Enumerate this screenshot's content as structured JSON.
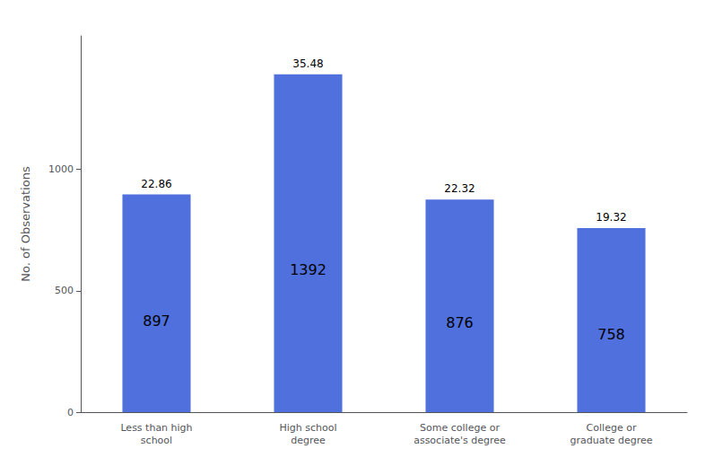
{
  "chart_data": {
    "type": "bar",
    "categories": [
      "Less than high\nschool",
      "High school\ndegree",
      "Some college or\nassociate's degree",
      "College or\ngraduate degree"
    ],
    "values": [
      897,
      1392,
      876,
      758
    ],
    "percentages": [
      22.86,
      35.48,
      22.32,
      19.32
    ],
    "ylabel": "No. of Observations",
    "ylim": [
      0,
      1550
    ],
    "yticks": [
      0,
      500,
      1000
    ],
    "grid": false,
    "data_labels": true
  }
}
